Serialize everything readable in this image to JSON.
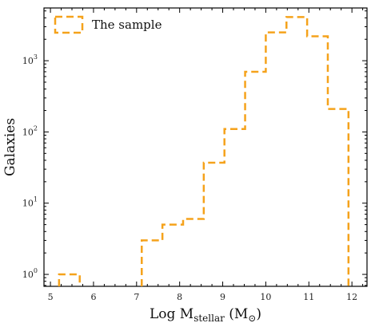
{
  "chart_data": {
    "type": "histogram",
    "title": "",
    "xlabel": "Log M",
    "xlabel_sub": "stellar",
    "xlabel_unit": " (M",
    "xlabel_unit_sub": "⊙",
    "xlabel_unit_close": ")",
    "ylabel": "Galaxies",
    "xlim": [
      4.85,
      12.35
    ],
    "ylim": [
      0.68,
      5500
    ],
    "yscale": "log",
    "x_ticks": [
      5,
      6,
      7,
      8,
      9,
      10,
      11,
      12
    ],
    "x_tick_labels": [
      "5",
      "6",
      "7",
      "8",
      "9",
      "10",
      "11",
      "12"
    ],
    "y_ticks": [
      1,
      10,
      100,
      1000
    ],
    "y_tick_labels": [
      {
        "base": "10",
        "exp": "0"
      },
      {
        "base": "10",
        "exp": "1"
      },
      {
        "base": "10",
        "exp": "2"
      },
      {
        "base": "10",
        "exp": "3"
      }
    ],
    "grid": false,
    "legend_position": "top-left",
    "series": [
      {
        "name": "The sample",
        "color": "#f5a21b",
        "linestyle": "dashed",
        "bin_edges": [
          5.2,
          5.68,
          6.16,
          6.64,
          7.12,
          7.6,
          8.08,
          8.56,
          9.04,
          9.52,
          10.0,
          10.48,
          10.96,
          11.44,
          11.92
        ],
        "counts": [
          1,
          0,
          0,
          0,
          3,
          5,
          6,
          37,
          110,
          700,
          2500,
          4100,
          2200,
          210
        ]
      }
    ]
  }
}
